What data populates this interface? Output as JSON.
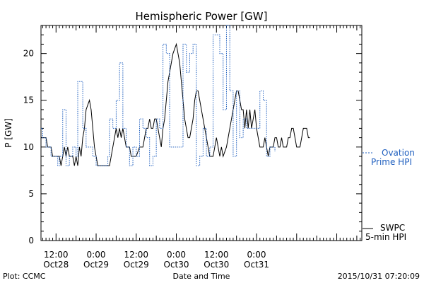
{
  "chart_data": {
    "type": "line",
    "title": "Hemispheric Power [GW]",
    "ylabel": "P [GW]",
    "xlabel": "Date and Time",
    "ylim": [
      0,
      23
    ],
    "yticks": [
      0,
      5,
      10,
      15,
      20
    ],
    "x_unit": "hours since 2015-10-27 00:00 UT",
    "xlim": [
      31.5,
      127.5
    ],
    "xtick_labels": [
      {
        "x": 36,
        "line1": "12:00",
        "line2": "Oct28"
      },
      {
        "x": 48,
        "line1": "0:00",
        "line2": "Oct29"
      },
      {
        "x": 60,
        "line1": "12:00",
        "line2": "Oct29"
      },
      {
        "x": 72,
        "line1": "0:00",
        "line2": "Oct30"
      },
      {
        "x": 84,
        "line1": "12:00",
        "line2": "Oct30"
      },
      {
        "x": 96,
        "line1": "0:00",
        "line2": "Oct31"
      }
    ],
    "series": [
      {
        "name": "SWPC 5-min HPI",
        "color": "#000000",
        "style": "solid",
        "points": [
          [
            31.5,
            11
          ],
          [
            33,
            11
          ],
          [
            33.5,
            10
          ],
          [
            34.5,
            10
          ],
          [
            35,
            9
          ],
          [
            36.5,
            9
          ],
          [
            37,
            9
          ],
          [
            37.5,
            8
          ],
          [
            38,
            9
          ],
          [
            38.5,
            10
          ],
          [
            39,
            9
          ],
          [
            39.5,
            10
          ],
          [
            40,
            9
          ],
          [
            41,
            9
          ],
          [
            41.5,
            8
          ],
          [
            42,
            9
          ],
          [
            42.5,
            8
          ],
          [
            43,
            10
          ],
          [
            43.5,
            9
          ],
          [
            44,
            11
          ],
          [
            44.5,
            12
          ],
          [
            45,
            14
          ],
          [
            45.5,
            14.5
          ],
          [
            46,
            15
          ],
          [
            46.5,
            14
          ],
          [
            47,
            12
          ],
          [
            47.5,
            10
          ],
          [
            48,
            9
          ],
          [
            48.5,
            8
          ],
          [
            52,
            8
          ],
          [
            52.5,
            9
          ],
          [
            53,
            10
          ],
          [
            53.5,
            11
          ],
          [
            54,
            12
          ],
          [
            54.5,
            11
          ],
          [
            55,
            12
          ],
          [
            55.5,
            11
          ],
          [
            56,
            12
          ],
          [
            56.5,
            11
          ],
          [
            57,
            10
          ],
          [
            58,
            10
          ],
          [
            58.5,
            9
          ],
          [
            60,
            9
          ],
          [
            61,
            10
          ],
          [
            62,
            10
          ],
          [
            62.5,
            11
          ],
          [
            63,
            12
          ],
          [
            63.5,
            12
          ],
          [
            64,
            13
          ],
          [
            64.5,
            12
          ],
          [
            65,
            12
          ],
          [
            65.5,
            13
          ],
          [
            66,
            13
          ],
          [
            66.5,
            12
          ],
          [
            67,
            11
          ],
          [
            67.5,
            10
          ],
          [
            68,
            12
          ],
          [
            68.5,
            13
          ],
          [
            69,
            15
          ],
          [
            69.5,
            17
          ],
          [
            70,
            18
          ],
          [
            70.5,
            19
          ],
          [
            71,
            20
          ],
          [
            71.5,
            20.5
          ],
          [
            72,
            21
          ],
          [
            72.5,
            20
          ],
          [
            73,
            19
          ],
          [
            73.5,
            17
          ],
          [
            74,
            15
          ],
          [
            74.5,
            13
          ],
          [
            75,
            12
          ],
          [
            75.5,
            11
          ],
          [
            76,
            11
          ],
          [
            76.5,
            12
          ],
          [
            77,
            13
          ],
          [
            77.5,
            15
          ],
          [
            78,
            16
          ],
          [
            78.5,
            16
          ],
          [
            79,
            15
          ],
          [
            79.5,
            14
          ],
          [
            80,
            13
          ],
          [
            80.5,
            12
          ],
          [
            81,
            11
          ],
          [
            81.5,
            10
          ],
          [
            82,
            9
          ],
          [
            83,
            9
          ],
          [
            83.5,
            10
          ],
          [
            84,
            11
          ],
          [
            84.5,
            10
          ],
          [
            85,
            9
          ],
          [
            85.5,
            10
          ],
          [
            86,
            9
          ],
          [
            87,
            10
          ],
          [
            87.5,
            11
          ],
          [
            88,
            12
          ],
          [
            88.5,
            13
          ],
          [
            89,
            14
          ],
          [
            89.5,
            15
          ],
          [
            90,
            16
          ],
          [
            90.5,
            16
          ],
          [
            91,
            15
          ],
          [
            91.5,
            14
          ],
          [
            92,
            14
          ],
          [
            92.5,
            12
          ],
          [
            93,
            14
          ],
          [
            93.5,
            12
          ],
          [
            94,
            14
          ],
          [
            94.5,
            12
          ],
          [
            95,
            13
          ],
          [
            95.5,
            14
          ],
          [
            96,
            12
          ],
          [
            96.5,
            11
          ],
          [
            97,
            10
          ],
          [
            98,
            10
          ],
          [
            98.5,
            11
          ],
          [
            99,
            10
          ],
          [
            99.5,
            9
          ],
          [
            100,
            10
          ],
          [
            101,
            10
          ],
          [
            101.5,
            11
          ],
          [
            102,
            11
          ],
          [
            102.5,
            10
          ],
          [
            103,
            10
          ],
          [
            103.5,
            11
          ],
          [
            104,
            10
          ],
          [
            105,
            10
          ],
          [
            105.5,
            11
          ],
          [
            106,
            11
          ],
          [
            106.5,
            12
          ],
          [
            107,
            12
          ],
          [
            107.5,
            11
          ],
          [
            108,
            10
          ],
          [
            109,
            10
          ],
          [
            109.5,
            11
          ],
          [
            110,
            12
          ],
          [
            110.5,
            12
          ],
          [
            111,
            12
          ],
          [
            111.5,
            11
          ],
          [
            112,
            11
          ]
        ]
      },
      {
        "name": "Ovation Prime HPI",
        "color": "#1f5fbf",
        "style": "dotted-step",
        "points": [
          [
            31.5,
            12
          ],
          [
            32,
            11
          ],
          [
            33,
            10
          ],
          [
            34.5,
            9
          ],
          [
            36.5,
            8
          ],
          [
            37,
            9
          ],
          [
            38,
            14
          ],
          [
            39,
            8
          ],
          [
            40,
            9
          ],
          [
            41,
            10
          ],
          [
            42,
            9
          ],
          [
            42.5,
            17
          ],
          [
            44,
            12
          ],
          [
            45,
            10
          ],
          [
            46,
            10
          ],
          [
            47,
            9
          ],
          [
            48,
            8
          ],
          [
            51.5,
            9
          ],
          [
            52,
            13
          ],
          [
            53,
            12
          ],
          [
            54,
            15
          ],
          [
            55,
            19
          ],
          [
            56,
            12
          ],
          [
            57,
            10
          ],
          [
            58,
            8
          ],
          [
            59,
            10
          ],
          [
            60,
            9
          ],
          [
            61,
            13
          ],
          [
            62,
            12
          ],
          [
            63,
            11
          ],
          [
            64,
            8
          ],
          [
            65,
            9
          ],
          [
            66,
            13
          ],
          [
            67,
            12
          ],
          [
            68,
            21
          ],
          [
            69,
            20
          ],
          [
            70,
            10
          ],
          [
            72,
            10
          ],
          [
            73,
            10
          ],
          [
            74,
            21
          ],
          [
            75,
            18
          ],
          [
            76,
            20
          ],
          [
            77,
            21
          ],
          [
            78,
            8
          ],
          [
            79,
            9
          ],
          [
            80,
            12
          ],
          [
            81,
            9
          ],
          [
            82,
            10
          ],
          [
            83,
            22
          ],
          [
            84,
            22
          ],
          [
            85,
            20
          ],
          [
            86,
            14
          ],
          [
            87,
            23
          ],
          [
            88,
            16
          ],
          [
            89,
            9
          ],
          [
            90,
            16
          ],
          [
            91,
            11
          ],
          [
            92,
            13
          ],
          [
            93,
            12
          ],
          [
            96,
            12
          ],
          [
            97,
            16
          ],
          [
            98,
            15
          ],
          [
            99,
            9
          ],
          [
            100,
            10
          ],
          [
            101,
            10
          ],
          [
            101.5,
            9.5
          ]
        ]
      }
    ],
    "legend": [
      {
        "series": "Ovation Prime HPI",
        "line1": "Ovation",
        "line2": "Prime HPI",
        "color": "#1f5fbf",
        "placement": "right"
      },
      {
        "series": "SWPC 5-min HPI",
        "line1": "SWPC",
        "line2": "5-min HPI",
        "color": "#000000",
        "placement": "bottom-right"
      }
    ],
    "grid": false
  },
  "footer": {
    "left": "Plot: CCMC",
    "center": "Date and Time",
    "right": "2015/10/31 07:20:09"
  }
}
